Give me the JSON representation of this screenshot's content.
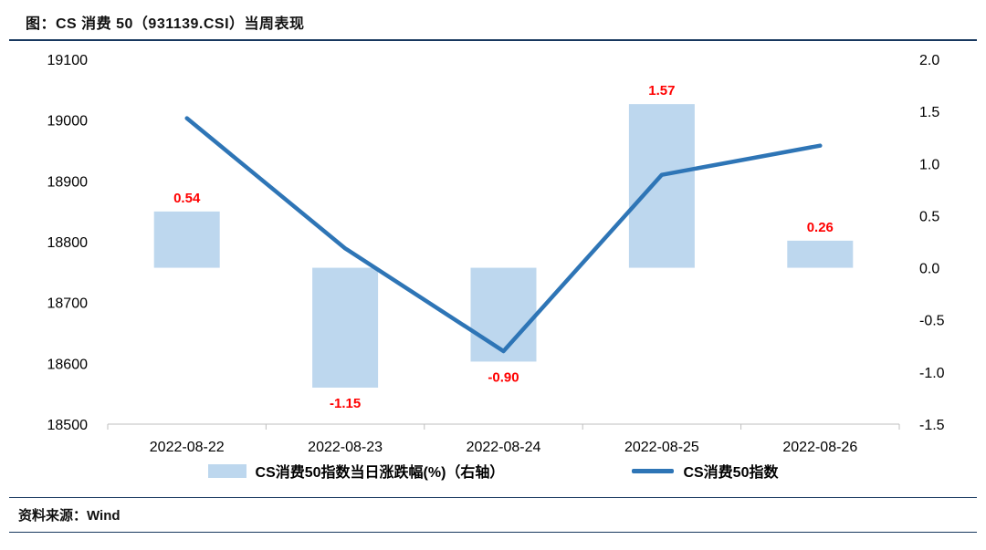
{
  "header": {
    "title": "图：CS 消费 50（931139.CSI）当周表现"
  },
  "footer": {
    "source": "资料来源：Wind"
  },
  "colors": {
    "rule_dark": "#17375E",
    "bar_fill": "#BDD7EE",
    "line_color": "#2E75B6",
    "label_red": "#FF0000"
  },
  "chart_data": {
    "type": "bar+line combo",
    "categories": [
      "2022-08-22",
      "2022-08-23",
      "2022-08-24",
      "2022-08-25",
      "2022-08-26"
    ],
    "series": [
      {
        "name": "CS消费50指数当日涨跌幅(%)（右轴）",
        "type": "bar",
        "axis": "right",
        "values": [
          0.54,
          -1.15,
          -0.9,
          1.57,
          0.26
        ],
        "labels": [
          "0.54",
          "-1.15",
          "-0.90",
          "1.57",
          "0.26"
        ],
        "color": "#BDD7EE",
        "label_color": "#FF0000"
      },
      {
        "name": "CS消费50指数",
        "type": "line",
        "axis": "left",
        "values": [
          19003,
          18789,
          18620,
          18910,
          18958
        ],
        "color": "#2E75B6"
      }
    ],
    "left_axis": {
      "min": 18500,
      "max": 19100,
      "step": 100,
      "ticks": [
        "19100",
        "19000",
        "18900",
        "18800",
        "18700",
        "18600",
        "18500"
      ]
    },
    "right_axis": {
      "min": -1.5,
      "max": 2.0,
      "step": 0.5,
      "ticks": [
        "2.0",
        "1.5",
        "1.0",
        "0.5",
        "0.0",
        "-0.5",
        "-1.0",
        "-1.5"
      ]
    },
    "grid": false,
    "legend_position": "bottom"
  }
}
